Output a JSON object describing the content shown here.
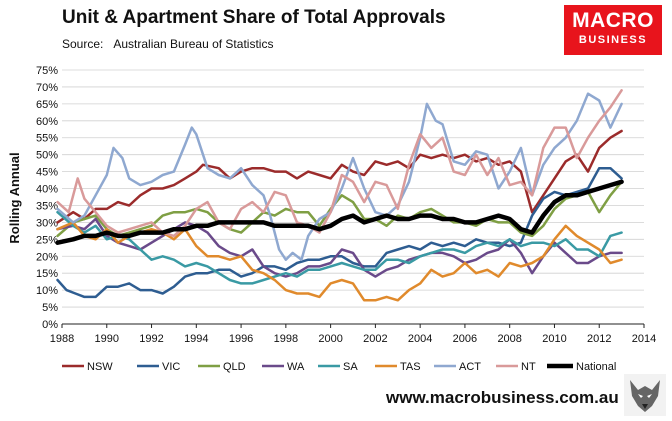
{
  "header": {
    "title": "Unit & Apartment Share of Total Approvals",
    "source_label": "Source:",
    "source_value": "Australian Bureau of Statistics"
  },
  "logo": {
    "line1": "MACRO",
    "line2": "BUSINESS"
  },
  "footer": {
    "url": "www.macrobusiness.com.au"
  },
  "chart_data": {
    "type": "line",
    "title": "Unit & Apartment Share of Total Approvals",
    "xlabel": "",
    "ylabel": "Rolling Annual",
    "xlim": [
      1988,
      2014
    ],
    "ylim": [
      0,
      75
    ],
    "x_ticks": [
      1988,
      1990,
      1992,
      1994,
      1996,
      1998,
      2000,
      2002,
      2004,
      2006,
      2008,
      2010,
      2012,
      2014
    ],
    "y_ticks": [
      "0%",
      "5%",
      "10%",
      "15%",
      "20%",
      "25%",
      "30%",
      "35%",
      "40%",
      "45%",
      "50%",
      "55%",
      "60%",
      "65%",
      "70%",
      "75%"
    ],
    "grid": "horizontal",
    "legend_position": "bottom",
    "series": [
      {
        "name": "NSW",
        "color": "#9b2b2b",
        "width": 2.5,
        "x": [
          1987.8,
          1988.5,
          1989,
          1989.5,
          1990,
          1990.5,
          1991,
          1991.5,
          1992,
          1992.5,
          1993,
          1993.5,
          1994,
          1994.3,
          1995,
          1995.5,
          1996,
          1996.5,
          1997,
          1997.5,
          1998,
          1998.5,
          1999,
          1999.5,
          2000,
          2000.5,
          2001,
          2001.5,
          2002,
          2002.5,
          2003,
          2003.5,
          2004,
          2004.5,
          2005,
          2005.5,
          2006,
          2006.5,
          2007,
          2007.5,
          2008,
          2008.5,
          2009,
          2009.5,
          2010,
          2010.5,
          2011,
          2011.5,
          2012,
          2012.5,
          2013
        ],
        "y": [
          30,
          33,
          31,
          34,
          34,
          36,
          35,
          38,
          40,
          40,
          41,
          43,
          45,
          47,
          46,
          43,
          45,
          46,
          46,
          45,
          45,
          43,
          45,
          44,
          43,
          47,
          45,
          44,
          48,
          47,
          48,
          46,
          50,
          49,
          50,
          49,
          50,
          48,
          49,
          47,
          48,
          45,
          33,
          38,
          43,
          48,
          50,
          45,
          52,
          55,
          57
        ]
      },
      {
        "name": "VIC",
        "color": "#2e5d91",
        "width": 2.5,
        "x": [
          1987.8,
          1988.2,
          1988.6,
          1989,
          1989.5,
          1990,
          1990.5,
          1991,
          1991.5,
          1992,
          1992.5,
          1993,
          1993.5,
          1994,
          1994.5,
          1995,
          1995.5,
          1996,
          1996.5,
          1997,
          1997.5,
          1998,
          1998.5,
          1999,
          1999.5,
          2000,
          2000.5,
          2001,
          2001.5,
          2002,
          2002.5,
          2003,
          2003.5,
          2004,
          2004.5,
          2005,
          2005.5,
          2006,
          2006.5,
          2007,
          2007.5,
          2008,
          2008.5,
          2009,
          2009.5,
          2010,
          2010.5,
          2011,
          2011.5,
          2012,
          2012.5,
          2013
        ],
        "y": [
          13,
          10,
          9,
          8,
          8,
          11,
          11,
          12,
          10,
          10,
          9,
          11,
          14,
          15,
          15,
          16,
          16,
          14,
          15,
          17,
          17,
          16,
          18,
          19,
          19,
          20,
          20,
          18,
          17,
          17,
          21,
          22,
          23,
          22,
          24,
          23,
          24,
          23,
          25,
          24,
          24,
          23,
          24,
          32,
          37,
          39,
          38,
          39,
          40,
          46,
          46,
          43
        ]
      },
      {
        "name": "QLD",
        "color": "#7f9f44",
        "width": 2.5,
        "x": [
          1987.8,
          1988.5,
          1989,
          1989.5,
          1990,
          1990.5,
          1991,
          1991.5,
          1992,
          1992.5,
          1993,
          1993.5,
          1994,
          1994.5,
          1995,
          1995.5,
          1996,
          1996.5,
          1997,
          1997.5,
          1998,
          1998.5,
          1999,
          1999.5,
          2000,
          2000.5,
          2001,
          2001.5,
          2002,
          2002.5,
          2003,
          2003.5,
          2004,
          2004.5,
          2005,
          2005.5,
          2006,
          2006.5,
          2007,
          2007.5,
          2008,
          2008.5,
          2009,
          2009.5,
          2010,
          2010.5,
          2011,
          2011.5,
          2012,
          2012.5,
          2013
        ],
        "y": [
          26,
          30,
          31,
          32,
          28,
          26,
          27,
          28,
          29,
          32,
          33,
          33,
          34,
          33,
          30,
          28,
          27,
          30,
          33,
          32,
          34,
          33,
          33,
          29,
          34,
          38,
          36,
          31,
          31,
          29,
          32,
          31,
          33,
          34,
          32,
          30,
          30,
          29,
          31,
          30,
          30,
          27,
          26,
          29,
          34,
          37,
          38,
          39,
          33,
          38,
          42
        ]
      },
      {
        "name": "WA",
        "color": "#6a4a8a",
        "width": 2.5,
        "x": [
          1987.8,
          1988.5,
          1989,
          1989.5,
          1990,
          1990.5,
          1991,
          1991.5,
          1992,
          1992.5,
          1993,
          1993.5,
          1994,
          1994.5,
          1995,
          1995.5,
          1996,
          1996.5,
          1997,
          1997.5,
          1998,
          1998.5,
          1999,
          1999.5,
          2000,
          2000.5,
          2001,
          2001.5,
          2002,
          2002.5,
          2003,
          2003.5,
          2004,
          2004.5,
          2005,
          2005.5,
          2006,
          2006.5,
          2007,
          2007.5,
          2008,
          2008.5,
          2009,
          2009.5,
          2010,
          2010.5,
          2011,
          2011.5,
          2012,
          2012.5,
          2013
        ],
        "y": [
          28,
          29,
          28,
          31,
          26,
          24,
          23,
          22,
          24,
          26,
          28,
          30,
          29,
          27,
          23,
          21,
          20,
          22,
          17,
          15,
          14,
          15,
          17,
          17,
          18,
          22,
          21,
          16,
          14,
          16,
          17,
          19,
          20,
          21,
          21,
          20,
          18,
          19,
          21,
          22,
          25,
          21,
          15,
          20,
          24,
          21,
          18,
          18,
          20,
          21,
          21
        ]
      },
      {
        "name": "SA",
        "color": "#3a9aa4",
        "width": 2.5,
        "x": [
          1987.8,
          1988.5,
          1989,
          1989.5,
          1990,
          1990.5,
          1991,
          1991.5,
          1992,
          1992.5,
          1993,
          1993.5,
          1994,
          1994.5,
          1995,
          1995.5,
          1996,
          1996.5,
          1997,
          1997.5,
          1998,
          1998.5,
          1999,
          1999.5,
          2000,
          2000.5,
          2001,
          2001.5,
          2002,
          2002.5,
          2003,
          2003.5,
          2004,
          2004.5,
          2005,
          2005.5,
          2006,
          2006.5,
          2007,
          2007.5,
          2008,
          2008.5,
          2009,
          2009.5,
          2010,
          2010.5,
          2011,
          2011.5,
          2012,
          2012.5,
          2013
        ],
        "y": [
          33,
          29,
          27,
          29,
          25,
          26,
          25,
          22,
          19,
          20,
          19,
          17,
          18,
          17,
          15,
          13,
          12,
          12,
          13,
          14,
          15,
          14,
          16,
          16,
          17,
          18,
          17,
          16,
          16,
          19,
          19,
          18,
          20,
          21,
          22,
          22,
          21,
          23,
          24,
          23,
          25,
          23,
          24,
          24,
          23,
          25,
          22,
          22,
          20,
          26,
          27
        ]
      },
      {
        "name": "TAS",
        "color": "#e08a2c",
        "width": 2.5,
        "x": [
          1987.8,
          1988.5,
          1989,
          1989.5,
          1990,
          1990.5,
          1991,
          1991.5,
          1992,
          1992.5,
          1993,
          1993.5,
          1994,
          1994.5,
          1995,
          1995.5,
          1996,
          1996.5,
          1997,
          1997.5,
          1998,
          1998.5,
          1999,
          1999.5,
          2000,
          2000.5,
          2001,
          2001.5,
          2002,
          2002.5,
          2003,
          2003.5,
          2004,
          2004.5,
          2005,
          2005.5,
          2006,
          2006.5,
          2007,
          2007.5,
          2008,
          2008.5,
          2009,
          2009.5,
          2010,
          2010.5,
          2011,
          2011.5,
          2012,
          2012.5,
          2013
        ],
        "y": [
          28,
          30,
          26,
          25,
          28,
          24,
          26,
          27,
          28,
          27,
          25,
          28,
          23,
          20,
          20,
          19,
          20,
          16,
          15,
          13,
          10,
          9,
          9,
          8,
          12,
          13,
          12,
          7,
          7,
          8,
          7,
          10,
          12,
          16,
          14,
          15,
          18,
          15,
          16,
          14,
          18,
          17,
          18,
          20,
          25,
          29,
          26,
          24,
          22,
          18,
          19
        ]
      },
      {
        "name": "ACT",
        "color": "#8fa8d0",
        "width": 2.5,
        "x": [
          1987.8,
          1988.5,
          1989,
          1989.5,
          1990,
          1990.3,
          1990.7,
          1991,
          1991.5,
          1992,
          1992.5,
          1993,
          1993.5,
          1993.8,
          1994,
          1994.5,
          1995,
          1995.5,
          1996,
          1996.5,
          1997,
          1997.3,
          1997.7,
          1998,
          1998.3,
          1998.7,
          1999,
          1999.5,
          2000,
          2000.5,
          2001,
          2001.5,
          2002,
          2002.5,
          2003,
          2003.5,
          2004,
          2004.3,
          2004.7,
          2005,
          2005.5,
          2006,
          2006.5,
          2007,
          2007.5,
          2008,
          2008.5,
          2009,
          2009.5,
          2010,
          2010.5,
          2011,
          2011.5,
          2012,
          2012.5,
          2013
        ],
        "y": [
          34,
          30,
          32,
          38,
          44,
          52,
          49,
          43,
          41,
          42,
          44,
          45,
          53,
          58,
          56,
          46,
          44,
          43,
          46,
          41,
          38,
          32,
          22,
          19,
          21,
          19,
          26,
          31,
          33,
          40,
          49,
          40,
          33,
          32,
          35,
          42,
          55,
          65,
          60,
          59,
          48,
          47,
          51,
          50,
          40,
          45,
          52,
          38,
          47,
          52,
          55,
          60,
          68,
          66,
          58,
          65
        ]
      },
      {
        "name": "NT",
        "color": "#d99a9a",
        "width": 2.5,
        "x": [
          1987.8,
          1988.3,
          1988.7,
          1989,
          1989.5,
          1990,
          1990.5,
          1991,
          1991.5,
          1992,
          1992.5,
          1993,
          1993.5,
          1994,
          1994.5,
          1995,
          1995.5,
          1996,
          1996.5,
          1997,
          1997.5,
          1998,
          1998.5,
          1999,
          1999.5,
          2000,
          2000.5,
          2001,
          2001.5,
          2002,
          2002.5,
          2003,
          2003.5,
          2004,
          2004.5,
          2005,
          2005.5,
          2006,
          2006.5,
          2007,
          2007.5,
          2008,
          2008.5,
          2009,
          2009.5,
          2010,
          2010.5,
          2011,
          2011.5,
          2012,
          2012.5,
          2013
        ],
        "y": [
          36,
          33,
          43,
          37,
          33,
          29,
          27,
          28,
          29,
          30,
          27,
          26,
          29,
          34,
          36,
          30,
          28,
          34,
          36,
          33,
          39,
          38,
          30,
          29,
          27,
          33,
          44,
          42,
          36,
          42,
          41,
          34,
          47,
          56,
          52,
          55,
          45,
          44,
          50,
          44,
          49,
          41,
          42,
          38,
          52,
          58,
          58,
          49,
          55,
          60,
          64,
          69
        ]
      },
      {
        "name": "National",
        "color": "#000000",
        "width": 4.5,
        "x": [
          1987.8,
          1988.5,
          1989,
          1989.5,
          1990,
          1990.5,
          1991,
          1991.5,
          1992,
          1992.5,
          1993,
          1993.5,
          1994,
          1994.5,
          1995,
          1995.5,
          1996,
          1996.5,
          1997,
          1997.5,
          1998,
          1998.5,
          1999,
          1999.5,
          2000,
          2000.5,
          2001,
          2001.5,
          2002,
          2002.5,
          2003,
          2003.5,
          2004,
          2004.5,
          2005,
          2005.5,
          2006,
          2006.5,
          2007,
          2007.5,
          2008,
          2008.5,
          2009,
          2009.5,
          2010,
          2010.5,
          2011,
          2011.5,
          2012,
          2012.5,
          2013
        ],
        "y": [
          24,
          25,
          26,
          26,
          27,
          26,
          26,
          27,
          27,
          27,
          28,
          28,
          29,
          29,
          30,
          30,
          30,
          30,
          30,
          29,
          29,
          29,
          29,
          28,
          29,
          31,
          32,
          30,
          31,
          32,
          31,
          31,
          32,
          32,
          31,
          31,
          30,
          30,
          31,
          32,
          31,
          28,
          27,
          32,
          36,
          38,
          38,
          39,
          40,
          41,
          42
        ]
      }
    ]
  }
}
